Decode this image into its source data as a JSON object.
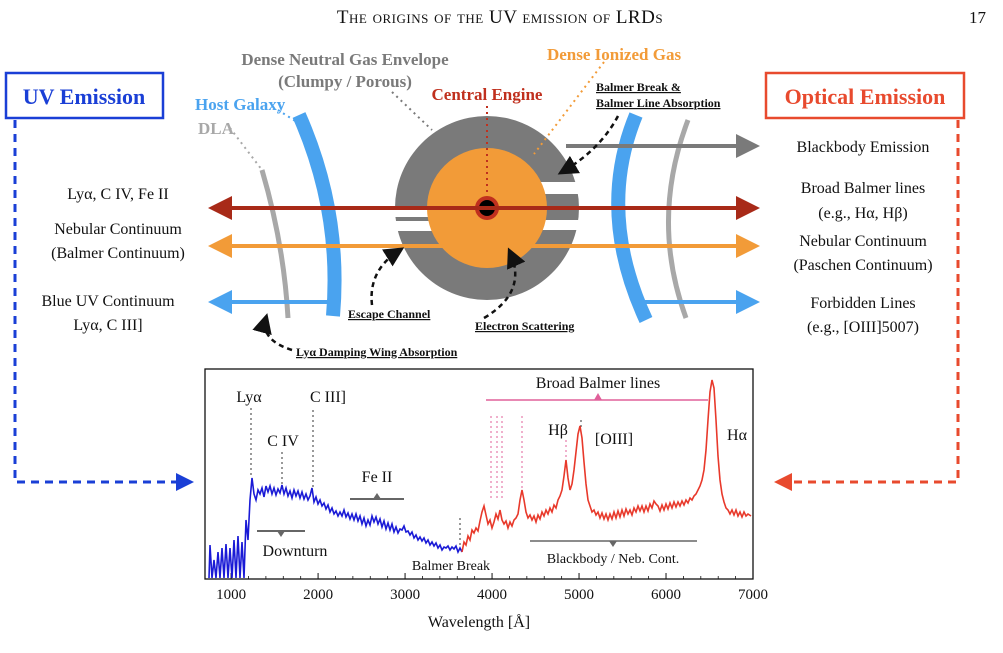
{
  "header": {
    "running_title": "The origins of the UV emission of LRDs",
    "page_number": "17"
  },
  "boxes": {
    "uv": "UV Emission",
    "optical": "Optical Emission"
  },
  "diagram_labels": {
    "neutral_gas_line1": "Dense Neutral Gas Envelope",
    "neutral_gas_line2": "(Clumpy / Porous)",
    "ionized_gas": "Dense Ionized Gas",
    "central_engine": "Central Engine",
    "balmer_break_line1": "Balmer Break &",
    "balmer_break_line2": "Balmer Line Absorption",
    "host_galaxy": "Host Galaxy",
    "dla": "DLA",
    "escape_channel": "Escape Channel",
    "electron_scattering": "Electron Scattering",
    "lya_damping": "Lyα Damping Wing Absorption"
  },
  "left_labels": {
    "l1": "Lyα, C IV, Fe II",
    "l2": "Nebular Continuum",
    "l3": "(Balmer Continuum)",
    "l4": "Blue UV Continuum",
    "l5": "Lyα, C III]"
  },
  "right_labels": {
    "r1": "Blackbody Emission",
    "r2": "Broad Balmer lines",
    "r3": "(e.g., Hα, Hβ)",
    "r4": "Nebular Continuum",
    "r5": "(Paschen Continuum)",
    "r6": "Forbidden Lines",
    "r7": "(e.g., [OIII]5007)"
  },
  "spectrum": {
    "xlabel": "Wavelength [Å]",
    "xlim": [
      700,
      7000
    ],
    "xticks": [
      "1000",
      "2000",
      "3000",
      "4000",
      "5000",
      "6000",
      "7000"
    ],
    "annotations": {
      "lya": "Lyα",
      "civ": "C IV",
      "ciii": "C III]",
      "feii": "Fe II",
      "downturn": "Downturn",
      "balmer_break": "Balmer Break",
      "broad_balmer": "Broad Balmer lines",
      "hbeta": "Hβ",
      "oiii": "[OIII]",
      "halpha": "Hα",
      "blackbody": "Blackbody / Neb. Cont."
    },
    "colors": {
      "uv": "#1a1ad6",
      "optical": "#e8392b",
      "balmer_bracket": "#e0609a"
    }
  },
  "colors": {
    "uv_box": "#1a3fd6",
    "optical_box": "#e84a2e",
    "neutral_gas": "#7a7a7a",
    "ionized_gas": "#f29b38",
    "host_galaxy": "#4aa3ef",
    "dla": "#a8a8a8",
    "dark_red_arrow": "#a82a18"
  }
}
